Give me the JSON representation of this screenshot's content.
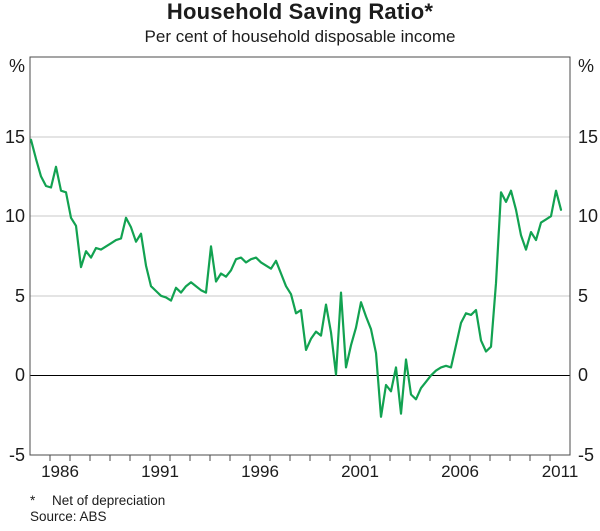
{
  "chart_data": {
    "type": "line",
    "title": "Household Saving Ratio*",
    "subtitle": "Per cent of household disposable income",
    "unit_label": "%",
    "x_range": [
      1985,
      2012
    ],
    "y_range": [
      -5,
      20
    ],
    "y_tick_labels": [
      15,
      10,
      5,
      0,
      -5
    ],
    "y_gridlines": [
      5,
      10,
      15
    ],
    "zero_line": 0,
    "x_tick_step_years": 1,
    "x_label_years": [
      1986,
      1991,
      1996,
      2001,
      2006,
      2011
    ],
    "grid_on": true,
    "legend": "none",
    "colors": {
      "line": "#12a251",
      "gridline": "#c9c9c9",
      "zero_line": "#000000",
      "border": "#4b4b4b",
      "text": "#1c1c1c"
    },
    "series": [
      {
        "name": "Household saving ratio (net of depreciation)",
        "frequency": "quarterly",
        "x_start": 1985.05,
        "x_step": 0.25,
        "values": [
          14.8,
          13.6,
          12.5,
          11.9,
          11.8,
          13.1,
          11.6,
          11.5,
          9.9,
          9.4,
          6.8,
          7.8,
          7.4,
          8.0,
          7.9,
          8.1,
          8.3,
          8.5,
          8.6,
          9.9,
          9.3,
          8.4,
          8.9,
          6.9,
          5.6,
          5.3,
          5.0,
          4.9,
          4.7,
          5.5,
          5.2,
          5.6,
          5.85,
          5.6,
          5.35,
          5.2,
          8.1,
          5.9,
          6.4,
          6.2,
          6.6,
          7.3,
          7.4,
          7.1,
          7.3,
          7.4,
          7.1,
          6.9,
          6.7,
          7.2,
          6.4,
          5.6,
          5.1,
          3.9,
          4.1,
          1.6,
          2.3,
          2.75,
          2.5,
          4.45,
          2.7,
          0.05,
          5.2,
          0.5,
          1.9,
          3.0,
          4.6,
          3.7,
          2.9,
          1.4,
          -2.6,
          -0.6,
          -1.0,
          0.5,
          -2.4,
          1.0,
          -1.2,
          -1.5,
          -0.8,
          -0.4,
          0.0,
          0.3,
          0.5,
          0.6,
          0.5,
          1.9,
          3.3,
          3.9,
          3.8,
          4.1,
          2.2,
          1.5,
          1.8,
          5.8,
          11.5,
          10.9,
          11.6,
          10.4,
          8.8,
          7.9,
          9.0,
          8.5,
          9.6,
          9.8,
          10.0,
          11.6,
          10.4
        ]
      }
    ],
    "footnote_marker": "*",
    "footnote_text": "Net of depreciation",
    "source_text": "Source: ABS"
  }
}
